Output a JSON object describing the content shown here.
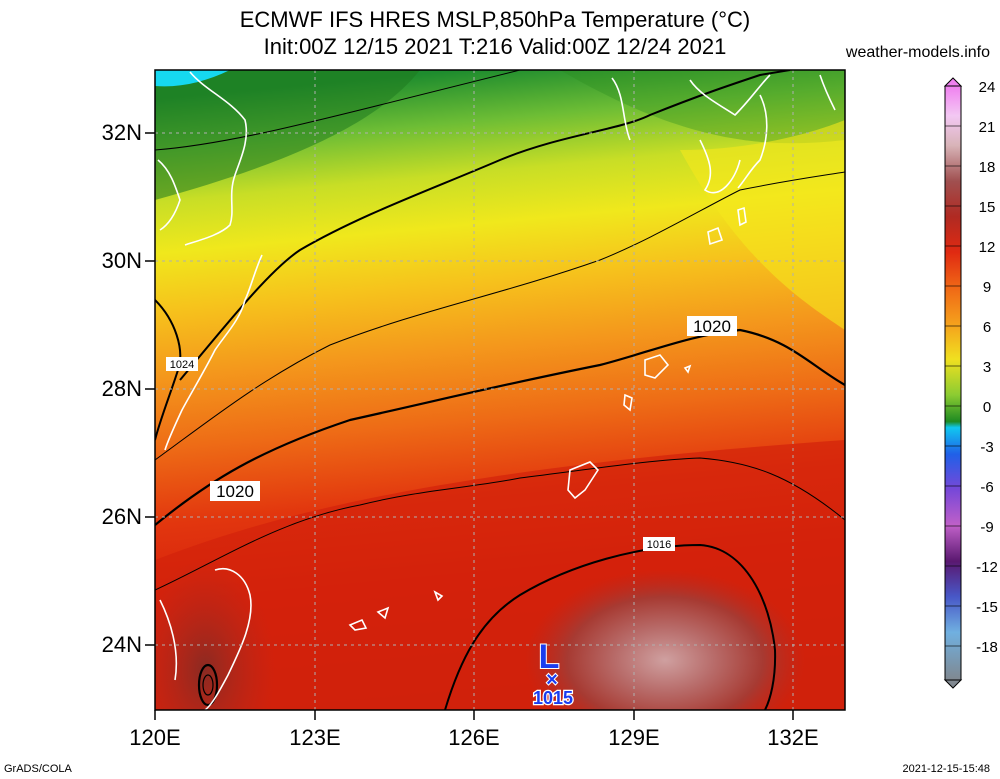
{
  "title_line1": "ECMWF IFS HRES MSLP,850hPa Temperature (°C)",
  "title_line2": "Init:00Z 12/15 2021 T:216 Valid:00Z 12/24 2021",
  "site": "weather-models.info",
  "footer_left": "GrADS/COLA",
  "footer_right": "2021-12-15-15:48",
  "lat_labels": [
    "32N",
    "30N",
    "28N",
    "26N",
    "24N"
  ],
  "lon_labels": [
    "120E",
    "123E",
    "126E",
    "129E",
    "132E"
  ],
  "colorbar_labels": [
    "24",
    "21",
    "18",
    "15",
    "12",
    "9",
    "6",
    "3",
    "0",
    "-3",
    "-6",
    "-9",
    "-12",
    "-15",
    "-18"
  ],
  "isobar_labels": {
    "a": "1024",
    "b": "1020",
    "c": "1020",
    "d": "1016"
  },
  "low": {
    "symbol": "L",
    "marker": "×",
    "value": "1015"
  }
}
